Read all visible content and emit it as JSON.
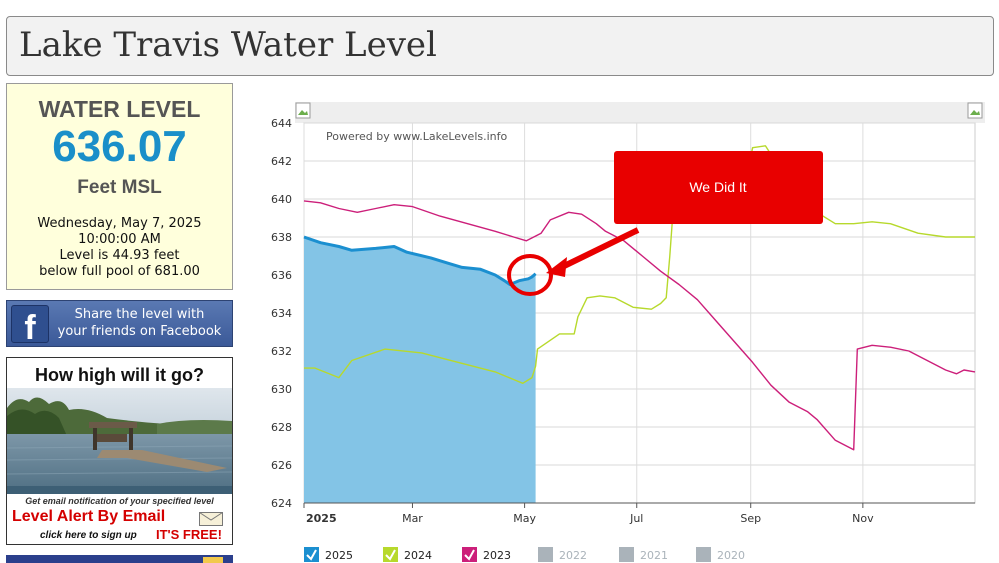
{
  "page": {
    "title": "Lake Travis Water Level"
  },
  "level_box": {
    "heading": "WATER LEVEL",
    "value": "636.07",
    "unit": "Feet MSL",
    "date": "Wednesday, May 7, 2025",
    "time": "10:00:00 AM",
    "level_line": "Level is 44.93 feet",
    "pool_line": "below full pool of 681.00"
  },
  "facebook": {
    "line1": "Share the level with",
    "line2": "your friends on Facebook",
    "icon": "facebook-icon"
  },
  "alert": {
    "heading": "How high will it go?",
    "note": "Get email notification of your specified level",
    "cta": "Level Alert By Email",
    "signup": "click here to sign up",
    "free": "IT'S FREE!",
    "icon": "envelope-icon"
  },
  "chart": {
    "powered_by": "Powered by www.LakeLevels.info",
    "annotation": "We Did It",
    "colors": {
      "c2025": "#1b8fd0",
      "fill2025": "#83c4e6",
      "c2024": "#b7d92c",
      "c2023": "#cc1f7a",
      "disabled": "#aab3ba",
      "callout": "#e80000"
    }
  },
  "chart_data": {
    "type": "line",
    "ylim": [
      624,
      644
    ],
    "yticks": [
      624,
      626,
      628,
      630,
      632,
      634,
      636,
      638,
      640,
      642,
      644
    ],
    "x_domain": [
      1,
      366
    ],
    "xticks": [
      {
        "label": "2025",
        "day": 1
      },
      {
        "label": "Mar",
        "day": 60
      },
      {
        "label": "May",
        "day": 121
      },
      {
        "label": "Jul",
        "day": 182
      },
      {
        "label": "Sep",
        "day": 244
      },
      {
        "label": "Nov",
        "day": 305
      }
    ],
    "legend": [
      {
        "label": "2025",
        "color": "#1b8fd0",
        "enabled": true
      },
      {
        "label": "2024",
        "color": "#b7d92c",
        "enabled": true
      },
      {
        "label": "2023",
        "color": "#cc1f7a",
        "enabled": true
      },
      {
        "label": "2022",
        "color": "#aab3ba",
        "enabled": false
      },
      {
        "label": "2021",
        "color": "#aab3ba",
        "enabled": false
      },
      {
        "label": "2020",
        "color": "#aab3ba",
        "enabled": false
      }
    ],
    "series": [
      {
        "name": "2025",
        "fill": true,
        "points": [
          [
            1,
            638.0
          ],
          [
            10,
            637.7
          ],
          [
            20,
            637.5
          ],
          [
            27,
            637.3
          ],
          [
            40,
            637.4
          ],
          [
            50,
            637.5
          ],
          [
            57,
            637.2
          ],
          [
            70,
            636.9
          ],
          [
            80,
            636.6
          ],
          [
            87,
            636.4
          ],
          [
            97,
            636.3
          ],
          [
            105,
            636.0
          ],
          [
            110,
            635.7
          ],
          [
            113,
            635.5
          ],
          [
            118,
            635.7
          ],
          [
            123,
            635.8
          ],
          [
            125,
            635.9
          ],
          [
            127,
            636.07
          ]
        ]
      },
      {
        "name": "2024",
        "points": [
          [
            1,
            631.1
          ],
          [
            7,
            631.1
          ],
          [
            20,
            630.6
          ],
          [
            27,
            631.5
          ],
          [
            45,
            632.1
          ],
          [
            65,
            631.9
          ],
          [
            85,
            631.4
          ],
          [
            105,
            630.9
          ],
          [
            115,
            630.5
          ],
          [
            120,
            630.3
          ],
          [
            125,
            630.6
          ],
          [
            127,
            631.2
          ],
          [
            128,
            632.1
          ],
          [
            140,
            632.9
          ],
          [
            148,
            632.9
          ],
          [
            150,
            633.8
          ],
          [
            155,
            634.8
          ],
          [
            162,
            634.9
          ],
          [
            170,
            634.8
          ],
          [
            180,
            634.3
          ],
          [
            190,
            634.2
          ],
          [
            195,
            634.5
          ],
          [
            198,
            634.8
          ],
          [
            200,
            637.0
          ],
          [
            203,
            641.0
          ],
          [
            210,
            640.9
          ],
          [
            225,
            640.4
          ],
          [
            240,
            640.3
          ],
          [
            245,
            642.7
          ],
          [
            252,
            642.8
          ],
          [
            260,
            641.6
          ],
          [
            275,
            639.6
          ],
          [
            290,
            638.7
          ],
          [
            300,
            638.7
          ],
          [
            310,
            638.8
          ],
          [
            320,
            638.7
          ],
          [
            335,
            638.2
          ],
          [
            350,
            638.0
          ],
          [
            366,
            638.0
          ]
        ]
      },
      {
        "name": "2023",
        "points": [
          [
            1,
            639.9
          ],
          [
            10,
            639.8
          ],
          [
            20,
            639.5
          ],
          [
            30,
            639.3
          ],
          [
            40,
            639.5
          ],
          [
            50,
            639.7
          ],
          [
            60,
            639.6
          ],
          [
            75,
            639.1
          ],
          [
            90,
            638.7
          ],
          [
            105,
            638.3
          ],
          [
            115,
            638.0
          ],
          [
            122,
            637.8
          ],
          [
            130,
            638.2
          ],
          [
            135,
            638.9
          ],
          [
            145,
            639.3
          ],
          [
            152,
            639.2
          ],
          [
            160,
            638.7
          ],
          [
            165,
            638.3
          ],
          [
            175,
            637.8
          ],
          [
            185,
            637.0
          ],
          [
            195,
            636.2
          ],
          [
            205,
            635.5
          ],
          [
            215,
            634.7
          ],
          [
            225,
            633.6
          ],
          [
            235,
            632.5
          ],
          [
            245,
            631.4
          ],
          [
            255,
            630.2
          ],
          [
            265,
            629.3
          ],
          [
            275,
            628.8
          ],
          [
            280,
            628.4
          ],
          [
            290,
            627.3
          ],
          [
            300,
            626.8
          ],
          [
            302,
            632.1
          ],
          [
            310,
            632.3
          ],
          [
            320,
            632.2
          ],
          [
            330,
            632.0
          ],
          [
            340,
            631.5
          ],
          [
            350,
            631.0
          ],
          [
            356,
            630.8
          ],
          [
            360,
            631.0
          ],
          [
            366,
            630.9
          ]
        ]
      }
    ]
  }
}
